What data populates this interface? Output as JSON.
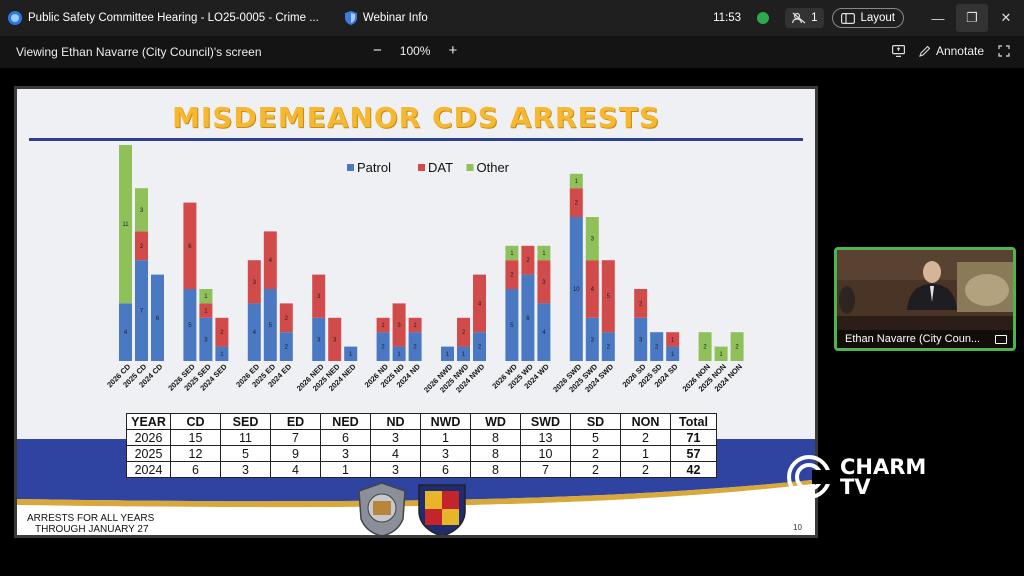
{
  "titlebar": {
    "meeting_title": "Public Safety Committee Hearing - LO25-0005 - Crime ...",
    "webinar_info": "Webinar Info",
    "time": "11:53",
    "participant_count": "1",
    "layout_label": "Layout"
  },
  "toolbar": {
    "viewing_label": "Viewing Ethan Navarre (City Council)'s screen",
    "zoom_level": "100%",
    "annotate_label": "Annotate"
  },
  "slide": {
    "title": "MISDEMEANOR CDS ARRESTS",
    "footnote_line1": "ARRESTS FOR ALL YEARS",
    "footnote_line2": "THROUGH JANUARY 27",
    "page_number": "10",
    "table": {
      "headers": [
        "YEAR",
        "CD",
        "SED",
        "ED",
        "NED",
        "ND",
        "NWD",
        "WD",
        "SWD",
        "SD",
        "NON",
        "Total"
      ],
      "rows": [
        [
          "2026",
          "15",
          "11",
          "7",
          "6",
          "3",
          "1",
          "8",
          "13",
          "5",
          "2",
          "71"
        ],
        [
          "2025",
          "12",
          "5",
          "9",
          "3",
          "4",
          "3",
          "8",
          "10",
          "2",
          "1",
          "57"
        ],
        [
          "2024",
          "6",
          "3",
          "4",
          "1",
          "3",
          "6",
          "8",
          "7",
          "2",
          "2",
          "42"
        ]
      ]
    }
  },
  "chart_data": {
    "type": "bar",
    "stacked": true,
    "legend_position": "top-center",
    "grid": false,
    "colors": {
      "Patrol": "#4a78c2",
      "DAT": "#d14b4b",
      "Other": "#8fc05a"
    },
    "categories": [
      "2026 CD",
      "2025 CD",
      "2024 CD",
      "2026 SED",
      "2025 SED",
      "2024 SED",
      "2026 ED",
      "2025 ED",
      "2024 ED",
      "2026 NED",
      "2025 NED",
      "2024 NED",
      "2026 ND",
      "2025 ND",
      "2024 ND",
      "2026 NWD",
      "2025 NWD",
      "2024 NWD",
      "2026 WD",
      "2025 WD",
      "2024 WD",
      "2026 SWD",
      "2025 SWD",
      "2024 SWD",
      "2026 SD",
      "2025 SD",
      "2024 SD",
      "2026 NON",
      "2025 NON",
      "2024 NON"
    ],
    "series": [
      {
        "name": "Patrol",
        "values": [
          4,
          7,
          6,
          5,
          3,
          1,
          4,
          5,
          2,
          3,
          0,
          1,
          2,
          1,
          2,
          1,
          1,
          2,
          5,
          6,
          4,
          10,
          3,
          2,
          3,
          2,
          1,
          0,
          0,
          0
        ]
      },
      {
        "name": "DAT",
        "values": [
          0,
          2,
          0,
          6,
          1,
          2,
          3,
          4,
          2,
          3,
          3,
          0,
          1,
          3,
          1,
          0,
          2,
          4,
          2,
          2,
          3,
          2,
          4,
          5,
          2,
          0,
          1,
          0,
          0,
          0
        ]
      },
      {
        "name": "Other",
        "values": [
          11,
          3,
          0,
          0,
          1,
          0,
          0,
          0,
          0,
          0,
          0,
          0,
          0,
          0,
          0,
          0,
          0,
          0,
          1,
          0,
          1,
          1,
          3,
          0,
          0,
          0,
          0,
          2,
          1,
          2
        ]
      }
    ],
    "ylim": [
      0,
      15
    ]
  },
  "camera": {
    "name_label": "Ethan Navarre (City Coun..."
  },
  "logo": {
    "line1": "CHARM",
    "line2": "TV"
  }
}
